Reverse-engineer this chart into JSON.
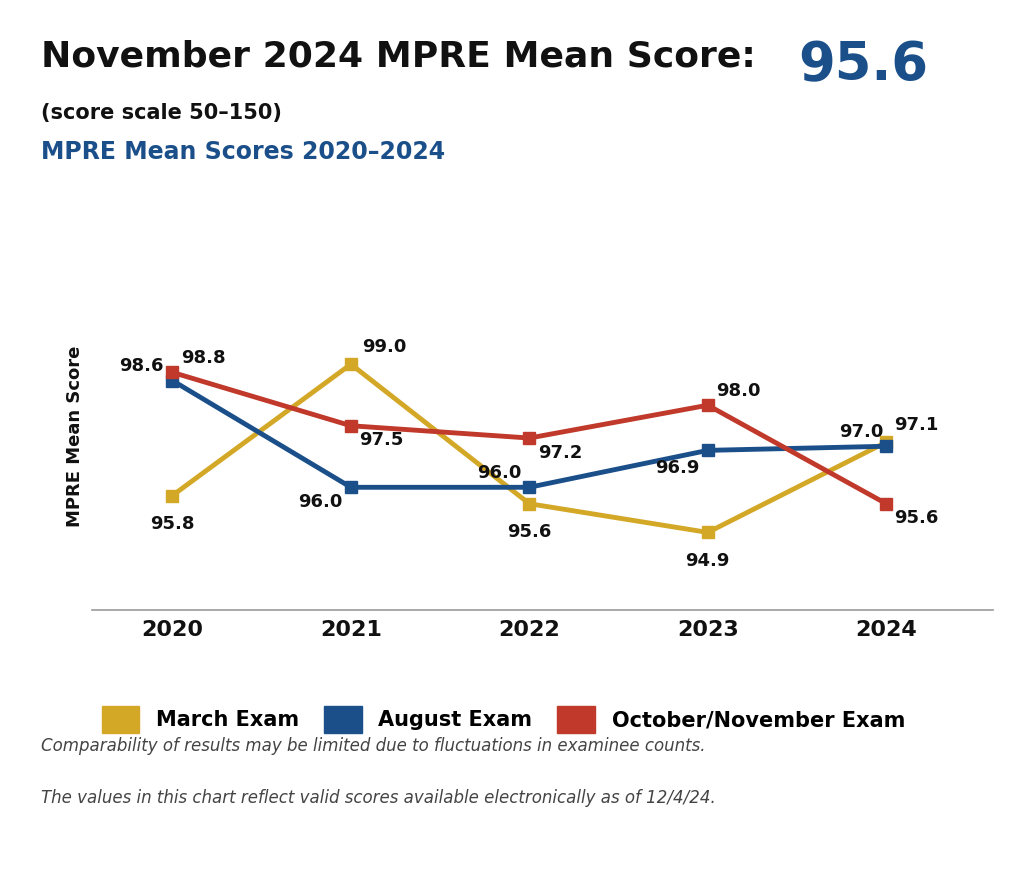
{
  "title_main": "November 2024 MPRE Mean Score: ",
  "title_score": "95.6",
  "subtitle": "(score scale 50–150)",
  "chart_title": "MPRE Mean Scores 2020–2024",
  "years": [
    2020,
    2021,
    2022,
    2023,
    2024
  ],
  "march": [
    95.8,
    99.0,
    95.6,
    94.9,
    97.1
  ],
  "august": [
    98.6,
    96.0,
    96.0,
    96.9,
    97.0
  ],
  "oct_nov": [
    98.8,
    97.5,
    97.2,
    98.0,
    95.6
  ],
  "march_color": "#D4A827",
  "august_color": "#1B4F8A",
  "oct_nov_color": "#C0392B",
  "march_label": "March Exam",
  "august_label": "August Exam",
  "oct_nov_label": "October/November Exam",
  "ylabel": "MPRE Mean Score",
  "ylim_min": 93.0,
  "ylim_max": 101.5,
  "note1": "Comparability of results may be limited due to fluctuations in examinee counts.",
  "note2": "The values in this chart reflect valid scores available electronically as of 12/4/24.",
  "title_main_color": "#111111",
  "title_score_color": "#1B4F8A",
  "chart_title_color": "#1B4F8A",
  "background_color": "#FFFFFF",
  "line_width": 3.5,
  "marker_size": 9,
  "marker_style": "s"
}
